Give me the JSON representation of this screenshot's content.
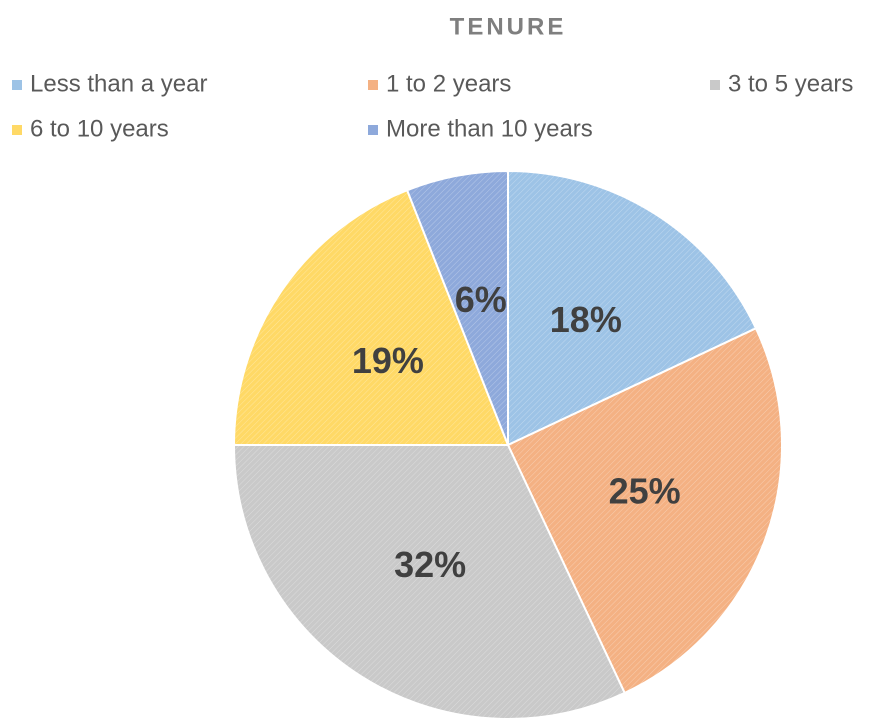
{
  "chart_data": {
    "type": "pie",
    "title": "TENURE",
    "categories": [
      "Less than a year",
      "1 to 2 years",
      "3 to 5 years",
      "6 to 10 years",
      "More than 10 years"
    ],
    "values": [
      18,
      25,
      32,
      19,
      6
    ],
    "value_labels": [
      "18%",
      "25%",
      "32%",
      "19%",
      "6%"
    ],
    "colors": [
      "#9dc3e6",
      "#f4b183",
      "#c9c9c9",
      "#ffd966",
      "#8ea9db"
    ],
    "legend": "top"
  }
}
